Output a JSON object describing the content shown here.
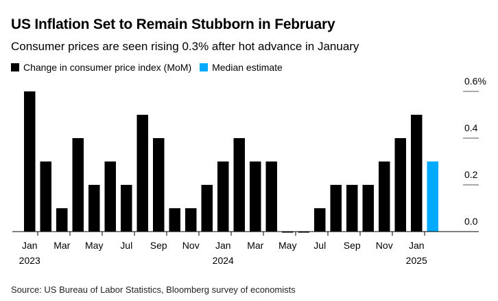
{
  "title": "US Inflation Set to Remain Stubborn in February",
  "subtitle": "Consumer prices are seen rising 0.3% after hot advance in January",
  "source": "Source: US Bureau of Labor Statistics, Bloomberg survey of economists",
  "colors": {
    "actual": "#000000",
    "estimate": "#00AAFF"
  },
  "chart_data": {
    "type": "bar",
    "legend": [
      {
        "name": "Change in consumer price index (MoM)",
        "color": "#000000"
      },
      {
        "name": "Median estimate",
        "color": "#00AAFF"
      }
    ],
    "legend_placement": "top-left",
    "categories": [
      "Jan 2023",
      "Feb 2023",
      "Mar 2023",
      "Apr 2023",
      "May 2023",
      "Jun 2023",
      "Jul 2023",
      "Aug 2023",
      "Sep 2023",
      "Oct 2023",
      "Nov 2023",
      "Dec 2023",
      "Jan 2024",
      "Feb 2024",
      "Mar 2024",
      "Apr 2024",
      "May 2024",
      "Jun 2024",
      "Jul 2024",
      "Aug 2024",
      "Sep 2024",
      "Oct 2024",
      "Nov 2024",
      "Dec 2024",
      "Jan 2025",
      "Feb 2025"
    ],
    "series": [
      {
        "name": "Change in consumer price index (MoM)",
        "values": [
          0.6,
          0.3,
          0.1,
          0.4,
          0.2,
          0.3,
          0.2,
          0.5,
          0.4,
          0.1,
          0.1,
          0.2,
          0.3,
          0.4,
          0.3,
          0.3,
          0.0,
          0.0,
          0.1,
          0.2,
          0.2,
          0.2,
          0.3,
          0.4,
          0.5,
          null
        ]
      },
      {
        "name": "Median estimate",
        "values": [
          null,
          null,
          null,
          null,
          null,
          null,
          null,
          null,
          null,
          null,
          null,
          null,
          null,
          null,
          null,
          null,
          null,
          null,
          null,
          null,
          null,
          null,
          null,
          null,
          null,
          0.3
        ]
      }
    ],
    "x_tick_labels": [
      {
        "month": "Jan",
        "year": "2023"
      },
      {
        "month": "Mar"
      },
      {
        "month": "May"
      },
      {
        "month": "Jul"
      },
      {
        "month": "Sep"
      },
      {
        "month": "Nov"
      },
      {
        "month": "Jan",
        "year": "2024"
      },
      {
        "month": "Mar"
      },
      {
        "month": "May"
      },
      {
        "month": "Jul"
      },
      {
        "month": "Sep"
      },
      {
        "month": "Nov"
      },
      {
        "month": "Jan",
        "year": "2025"
      }
    ],
    "y_ticks": [
      "0.0",
      "0.2",
      "0.4",
      "0.6%"
    ],
    "y_tick_values": [
      0,
      0.2,
      0.4,
      0.6
    ],
    "ylim": [
      0,
      0.6
    ],
    "y_axis_side": "right",
    "grid": false
  }
}
